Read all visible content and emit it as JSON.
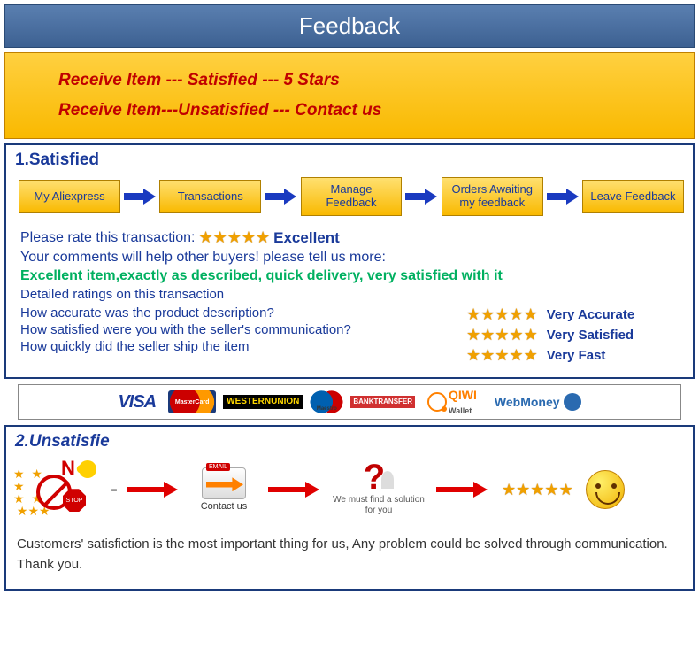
{
  "header": {
    "title": "Feedback"
  },
  "instructions": {
    "line1": "Receive  Item --- Satisfied  --- 5 Stars",
    "line2": "Receive  Item---Unsatisfied --- Contact us"
  },
  "satisfied": {
    "title": "1.Satisfied",
    "flow": [
      "My Aliexpress",
      "Transactions",
      "Manage Feedback",
      "Orders Awaiting my feedback",
      "Leave Feedback"
    ],
    "rate_prompt": "Please rate this transaction:",
    "rate_label": "Excellent",
    "comments_prompt": "Your comments will help other buyers! please tell us more:",
    "example_comment": "Excellent item,exactly as described, quick delivery, very satisfied with it",
    "details_heading": "Detailed ratings on this transaction",
    "q1": "How accurate was the product description?",
    "q2": "How satisfied were you with the seller's communication?",
    "q3": "How quickly did the seller ship the item",
    "a1": "Very Accurate",
    "a2": "Very Satisfied",
    "a3": "Very Fast",
    "star_count": 5
  },
  "payments": {
    "visa": "VISA",
    "mastercard": "MasterCard",
    "wu1": "WESTERN",
    "wu2": "UNION",
    "maestro": "Maestro",
    "bank1": "BANK",
    "bank2": "TRANSFER",
    "qiwi": "QIWI",
    "qiwi2": "Wallet",
    "webmoney": "WebMoney"
  },
  "unsatisfied": {
    "title": "2.Unsatisfie",
    "no_text": "N",
    "stop_text": "STOP",
    "email_tag": "EMAIL",
    "contact_label": "Contact us",
    "solution_text": "We must find a solution for you",
    "footer": "Customers' satisfiction is the most important thing for us, Any problem could be solved through communication. Thank you."
  },
  "colors": {
    "header_bg": "#3d6192",
    "gold": "#f9b900",
    "red_text": "#c00000",
    "navy": "#1a3a9a",
    "green": "#00b060",
    "arrow_blue": "#1a3ac0",
    "arrow_red": "#e00000",
    "star": "#f0a000"
  }
}
